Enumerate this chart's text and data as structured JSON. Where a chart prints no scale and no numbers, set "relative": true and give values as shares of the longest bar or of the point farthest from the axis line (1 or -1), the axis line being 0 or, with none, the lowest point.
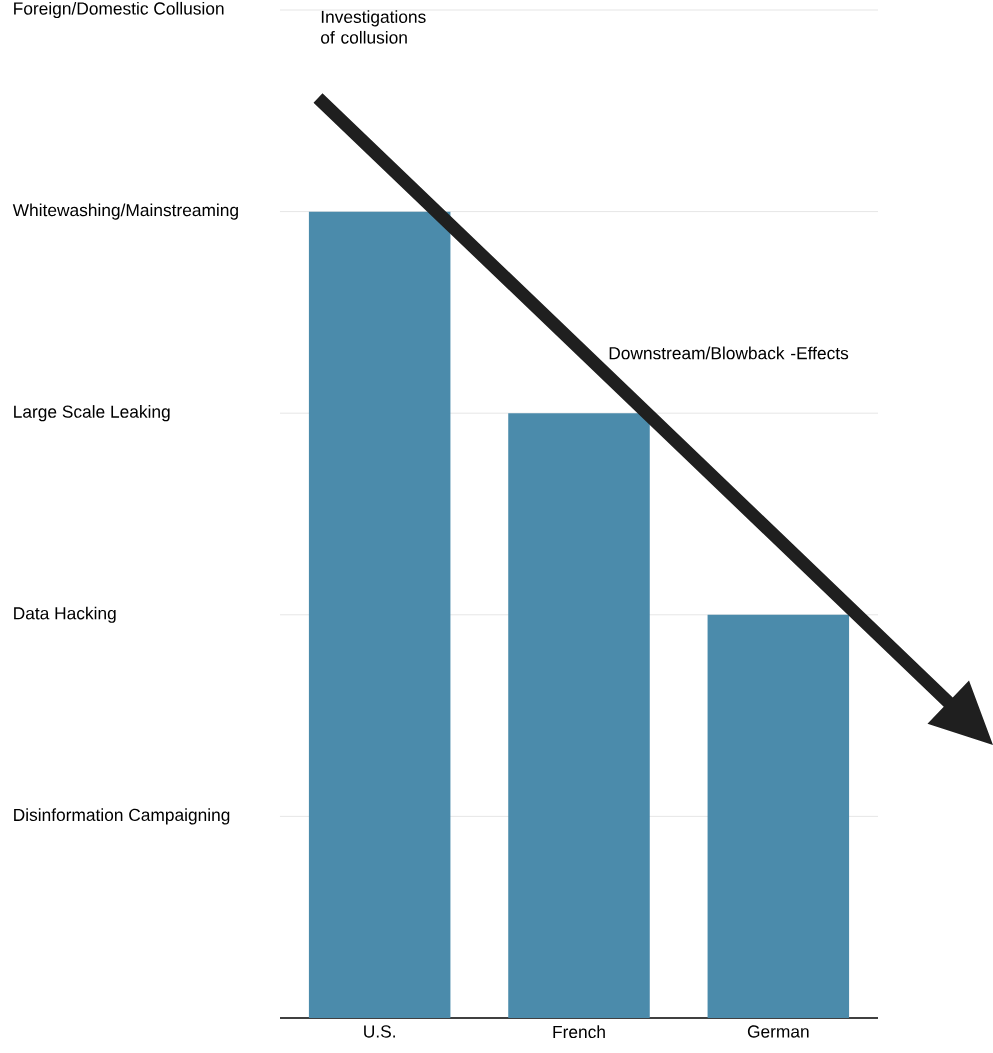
{
  "chart_data": {
    "type": "bar",
    "relative": true,
    "categories": [
      "U.S.",
      "French",
      "German"
    ],
    "values": [
      1,
      0.75,
      0.5
    ],
    "color": "#4b8bab",
    "grid": "y",
    "annotations": [
      "Disinformation Campaigning",
      "Data Hacking",
      "Large Scale Leaking",
      "Whitewashing/Mainstreaming",
      "Foreign/Domestic Collusion",
      "Investigations of collusion",
      "Downstream/Blowback -Effects"
    ]
  }
}
